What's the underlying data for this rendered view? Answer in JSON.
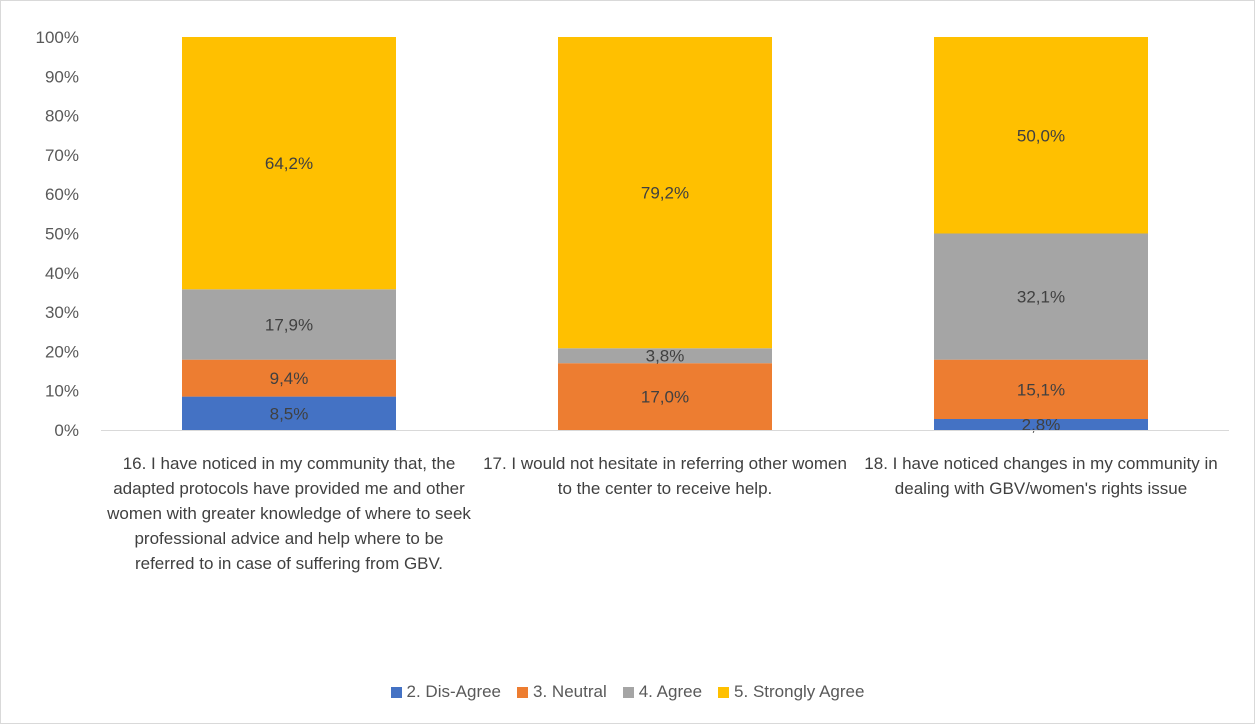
{
  "chart_data": {
    "type": "bar",
    "stacked": true,
    "percent": true,
    "categories": [
      "16. I have noticed in my community that, the adapted protocols have provided me and other women with greater knowledge of where to seek professional advice and help where to be referred to in case of suffering from GBV.",
      "17. I would not hesitate in referring other women to the center to receive help.",
      "18. I have noticed changes in my community in dealing with GBV/women's rights issue"
    ],
    "series": [
      {
        "name": "2. Dis-Agree",
        "color": "#4472c4",
        "values": [
          8.5,
          0,
          2.8
        ],
        "labels": [
          "8,5%",
          "",
          "2,8%"
        ]
      },
      {
        "name": "3. Neutral",
        "color": "#ed7d31",
        "values": [
          9.4,
          17.0,
          15.1
        ],
        "labels": [
          "9,4%",
          "17,0%",
          "15,1%"
        ]
      },
      {
        "name": "4.  Agree",
        "color": "#a5a5a5",
        "values": [
          17.9,
          3.8,
          32.1
        ],
        "labels": [
          "17,9%",
          "3,8%",
          "32,1%"
        ]
      },
      {
        "name": "5. Strongly Agree",
        "color": "#ffc000",
        "values": [
          64.2,
          79.2,
          50.0
        ],
        "labels": [
          "64,2%",
          "79,2%",
          "50,0%"
        ]
      }
    ],
    "yticks": [
      "0%",
      "10%",
      "20%",
      "30%",
      "40%",
      "50%",
      "60%",
      "70%",
      "80%",
      "90%",
      "100%"
    ],
    "ylim": [
      0,
      100
    ],
    "title": "",
    "xlabel": "",
    "ylabel": "",
    "grid": false,
    "legend": "bottom"
  }
}
